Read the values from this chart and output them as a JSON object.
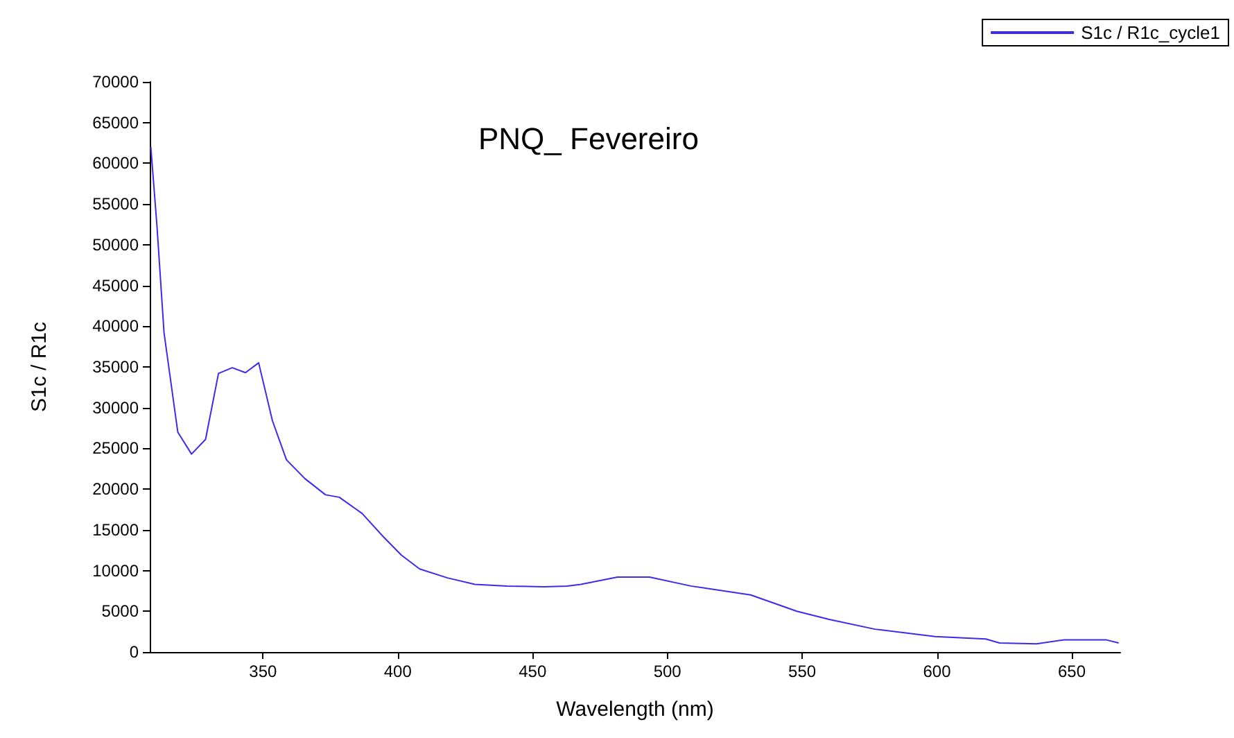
{
  "chart_data": {
    "type": "line",
    "title": "PNQ_ Fevereiro",
    "xlabel": "Wavelength (nm)",
    "ylabel": "S1c / R1c",
    "x": [
      308.4,
      310.7,
      313.3,
      318.4,
      323.5,
      328.7,
      333.5,
      338.6,
      343.5,
      348.4,
      353.5,
      358.7,
      365.5,
      373.2,
      378.3,
      386.8,
      394.5,
      401.3,
      408.1,
      418.4,
      428.6,
      440.6,
      454.2,
      462.8,
      467.9,
      481.5,
      493.4,
      508.7,
      530.9,
      548,
      560,
      577,
      599.3,
      618.1,
      623.2,
      636.9,
      647.2,
      662.6,
      667.4
    ],
    "series": [
      {
        "name": "S1c / R1c_cycle1",
        "color": "#3b2bf0",
        "values": [
          62000,
          52200,
          39200,
          27000,
          24300,
          26100,
          34200,
          34900,
          34300,
          35500,
          28400,
          23600,
          21300,
          19300,
          19000,
          17000,
          14200,
          11900,
          10200,
          9100,
          8300,
          8100,
          8000,
          8100,
          8300,
          9200,
          9200,
          8100,
          7000,
          5000,
          4000,
          2800,
          1900,
          1600,
          1100,
          1000,
          1500,
          1500,
          1100
        ]
      }
    ],
    "xlim": [
      308,
      668
    ],
    "xticks": [
      350,
      400,
      450,
      500,
      550,
      600,
      650
    ],
    "ylim": [
      0,
      70000
    ],
    "yticks": [
      0,
      5000,
      10000,
      15000,
      20000,
      25000,
      30000,
      35000,
      40000,
      45000,
      50000,
      55000,
      60000,
      65000,
      70000
    ],
    "grid": false,
    "legend": "top right",
    "marker": "none",
    "line_style": "solid"
  }
}
